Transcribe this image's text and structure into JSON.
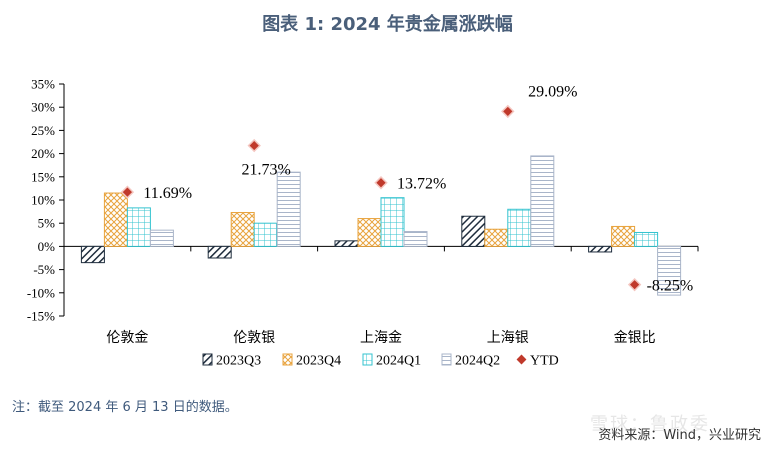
{
  "title": "图表 1:  2024 年贵金属涨跌幅",
  "note": "注：截至 2024 年 6 月 13 日的数据。",
  "source": "资料来源：Wind，兴业研究",
  "watermark": "雪球：鲁政委",
  "colors": {
    "s2023Q3": "#1f2d3d",
    "s2023Q4": "#e8a33d",
    "s2024Q1": "#33c3cf",
    "s2024Q2": "#a9b5c9",
    "ytd": "#c0392b"
  },
  "chart_data": {
    "type": "bar",
    "title": "2024 年贵金属涨跌幅",
    "categories": [
      "伦敦金",
      "伦敦银",
      "上海金",
      "上海银",
      "金银比"
    ],
    "series": [
      {
        "name": "2023Q3",
        "values": [
          -3.5,
          -2.5,
          1.2,
          6.5,
          -1.2
        ]
      },
      {
        "name": "2023Q4",
        "values": [
          11.5,
          7.3,
          6.0,
          3.7,
          4.3
        ]
      },
      {
        "name": "2024Q1",
        "values": [
          8.3,
          5.0,
          10.5,
          8.0,
          3.0
        ]
      },
      {
        "name": "2024Q2",
        "values": [
          3.5,
          16.0,
          3.2,
          19.5,
          -10.5
        ]
      },
      {
        "name": "YTD",
        "values": [
          11.69,
          21.73,
          13.72,
          29.09,
          -8.25
        ],
        "marker": "diamond"
      }
    ],
    "ytd_labels": [
      "11.69%",
      "21.73%",
      "13.72%",
      "29.09%",
      "-8.25%"
    ],
    "ylim": [
      -15,
      35
    ],
    "yticks": [
      "35%",
      "30%",
      "25%",
      "20%",
      "15%",
      "10%",
      "5%",
      "0%",
      "-5%",
      "-10%",
      "-15%"
    ],
    "legend": [
      "2023Q3",
      "2023Q4",
      "2024Q1",
      "2024Q2",
      "YTD"
    ],
    "legend_position": "bottom"
  }
}
